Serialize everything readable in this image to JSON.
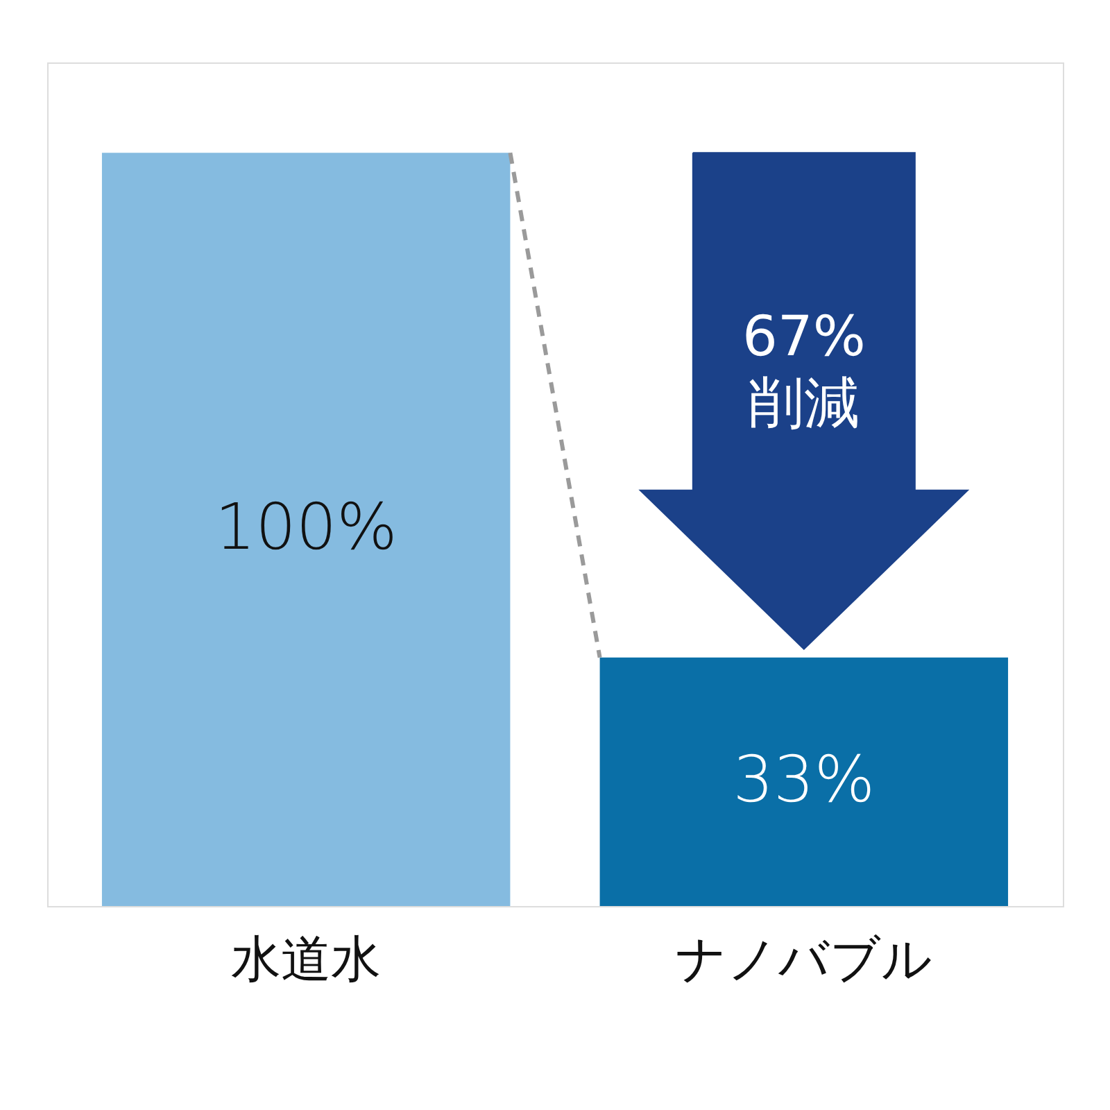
{
  "chart_data": {
    "type": "bar",
    "categories": [
      "水道水",
      "ナノバブル"
    ],
    "values": [
      100,
      33
    ],
    "colors": [
      "#85bbe0",
      "#0a6fa7"
    ],
    "value_labels": [
      "100%",
      "33%"
    ],
    "ylim": [
      0,
      112
    ],
    "annotations": [
      "67%\n削減"
    ],
    "grid": false
  }
}
